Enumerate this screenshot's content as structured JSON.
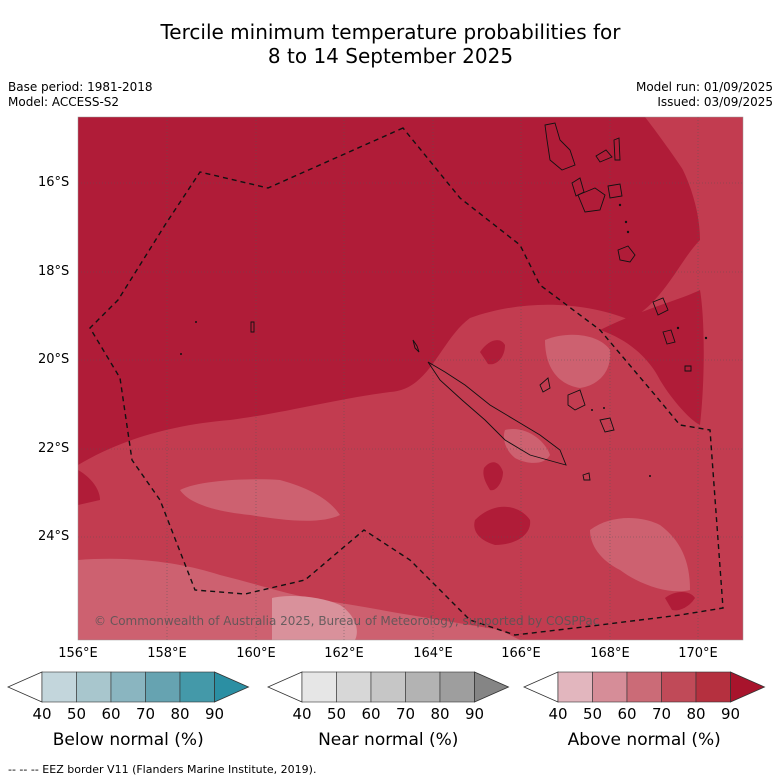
{
  "title_line1": "Tercile minimum temperature probabilities for",
  "title_line2": "8 to 14 September 2025",
  "base_period": "Base period: 1981-2018",
  "model": "Model: ACCESS-S2",
  "model_run": "Model run: 01/09/2025",
  "issued": "Issued: 03/09/2025",
  "copyright": "© Commonwealth of Australia 2025, Bureau of Meteorology, supported by COSPPac",
  "footer": "--  --  -- EEZ border V11 (Flanders Marine Institute, 2019).",
  "lat_labels": [
    "16°S",
    "18°S",
    "20°S",
    "22°S",
    "24°S"
  ],
  "lon_labels": [
    "156°E",
    "158°E",
    "160°E",
    "162°E",
    "164°E",
    "166°E",
    "168°E",
    "170°E"
  ],
  "colorbars": [
    {
      "title": "Below normal (%)",
      "ticks": [
        "40",
        "50",
        "60",
        "70",
        "80",
        "90"
      ],
      "colors": [
        "#ffffff",
        "#c3d6dc",
        "#a8c6cd",
        "#8ab5c0",
        "#66a3b1",
        "#4499a9",
        "#2b8fa3"
      ]
    },
    {
      "title": "Near normal (%)",
      "ticks": [
        "40",
        "50",
        "60",
        "70",
        "80",
        "90"
      ],
      "colors": [
        "#ffffff",
        "#e6e6e6",
        "#d7d7d7",
        "#c6c6c6",
        "#b3b3b3",
        "#9e9e9e",
        "#858585"
      ]
    },
    {
      "title": "Above normal (%)",
      "ticks": [
        "40",
        "50",
        "60",
        "70",
        "80",
        "90"
      ],
      "colors": [
        "#ffffff",
        "#e2b6be",
        "#d68d98",
        "#cb6b77",
        "#c04a58",
        "#b5303f",
        "#a8142c"
      ]
    }
  ],
  "colors": {
    "p80": "#b01c38",
    "p70": "#c23c50",
    "p60": "#cd6170",
    "p50": "#d9919b"
  }
}
